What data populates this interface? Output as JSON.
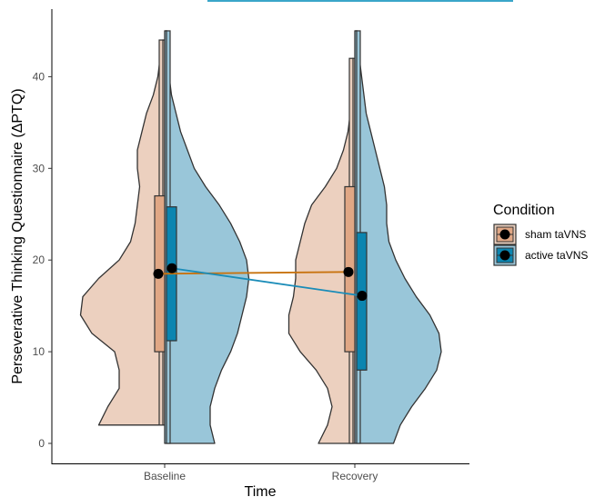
{
  "chart_data": {
    "type": "violin",
    "title": "",
    "xlabel": "Time",
    "ylabel": "Perseverative Thinking Questionnaire (ΔPTQ)",
    "categories": [
      "Baseline",
      "Recovery"
    ],
    "ylim": [
      -2,
      47
    ],
    "yticks": [
      0,
      10,
      20,
      30,
      40
    ],
    "grid": false,
    "legend": {
      "title": "Condition",
      "position": "right",
      "entries": [
        "sham taVNS",
        "active taVNS"
      ]
    },
    "series": [
      {
        "name": "sham taVNS",
        "side": "left",
        "fill": "#e0a785",
        "violin_fill": "#ecd0bf",
        "line_color": "#c8730f",
        "boxes": [
          {
            "category": "Baseline",
            "min": 2,
            "q1": 10,
            "median": 18.5,
            "q3": 27,
            "max": 44,
            "mean": 18.5
          },
          {
            "category": "Recovery",
            "min": 0,
            "q1": 10,
            "median": 18.7,
            "q3": 28,
            "max": 42,
            "mean": 18.7
          }
        ],
        "violins": [
          {
            "category": "Baseline",
            "profile": [
              [
                2,
                0.29
              ],
              [
                4,
                0.25
              ],
              [
                6,
                0.2
              ],
              [
                8,
                0.2
              ],
              [
                10,
                0.22
              ],
              [
                12,
                0.32
              ],
              [
                14,
                0.37
              ],
              [
                16,
                0.36
              ],
              [
                18,
                0.29
              ],
              [
                20,
                0.2
              ],
              [
                22,
                0.15
              ],
              [
                24,
                0.13
              ],
              [
                26,
                0.12
              ],
              [
                28,
                0.11
              ],
              [
                30,
                0.12
              ],
              [
                32,
                0.12
              ],
              [
                34,
                0.1
              ],
              [
                36,
                0.08
              ],
              [
                38,
                0.05
              ],
              [
                40,
                0.03
              ],
              [
                42,
                0.02
              ],
              [
                44,
                0.01
              ]
            ]
          },
          {
            "category": "Recovery",
            "profile": [
              [
                0,
                0.16
              ],
              [
                2,
                0.12
              ],
              [
                4,
                0.1
              ],
              [
                6,
                0.12
              ],
              [
                8,
                0.17
              ],
              [
                10,
                0.24
              ],
              [
                12,
                0.29
              ],
              [
                14,
                0.29
              ],
              [
                16,
                0.27
              ],
              [
                18,
                0.26
              ],
              [
                20,
                0.26
              ],
              [
                22,
                0.24
              ],
              [
                24,
                0.22
              ],
              [
                26,
                0.19
              ],
              [
                28,
                0.13
              ],
              [
                30,
                0.08
              ],
              [
                32,
                0.05
              ],
              [
                34,
                0.03
              ],
              [
                36,
                0.02
              ],
              [
                38,
                0.02
              ],
              [
                40,
                0.02
              ],
              [
                42,
                0.01
              ]
            ]
          }
        ]
      },
      {
        "name": "active taVNS",
        "side": "right",
        "fill": "#0b85b0",
        "violin_fill": "#99c6d9",
        "line_color": "#1a8cb8",
        "boxes": [
          {
            "category": "Baseline",
            "min": 0,
            "q1": 11.2,
            "median": 19,
            "q3": 25.8,
            "max": 45,
            "mean": 19.1
          },
          {
            "category": "Recovery",
            "min": 0,
            "q1": 8,
            "median": 16,
            "q3": 23,
            "max": 45,
            "mean": 16.1
          }
        ],
        "violins": [
          {
            "category": "Baseline",
            "profile": [
              [
                0,
                0.22
              ],
              [
                2,
                0.2
              ],
              [
                4,
                0.2
              ],
              [
                6,
                0.22
              ],
              [
                8,
                0.25
              ],
              [
                10,
                0.29
              ],
              [
                12,
                0.32
              ],
              [
                14,
                0.34
              ],
              [
                16,
                0.36
              ],
              [
                18,
                0.37
              ],
              [
                20,
                0.36
              ],
              [
                22,
                0.33
              ],
              [
                24,
                0.29
              ],
              [
                26,
                0.24
              ],
              [
                28,
                0.18
              ],
              [
                30,
                0.13
              ],
              [
                32,
                0.1
              ],
              [
                34,
                0.07
              ],
              [
                36,
                0.05
              ],
              [
                38,
                0.03
              ],
              [
                40,
                0.02
              ],
              [
                42,
                0.02
              ],
              [
                44,
                0.01
              ],
              [
                45,
                0.01
              ]
            ]
          },
          {
            "category": "Recovery",
            "profile": [
              [
                0,
                0.17
              ],
              [
                2,
                0.2
              ],
              [
                4,
                0.25
              ],
              [
                6,
                0.31
              ],
              [
                8,
                0.36
              ],
              [
                10,
                0.38
              ],
              [
                12,
                0.37
              ],
              [
                14,
                0.33
              ],
              [
                16,
                0.27
              ],
              [
                18,
                0.22
              ],
              [
                20,
                0.18
              ],
              [
                22,
                0.15
              ],
              [
                24,
                0.14
              ],
              [
                26,
                0.14
              ],
              [
                28,
                0.13
              ],
              [
                30,
                0.11
              ],
              [
                32,
                0.09
              ],
              [
                34,
                0.07
              ],
              [
                36,
                0.05
              ],
              [
                38,
                0.04
              ],
              [
                40,
                0.03
              ],
              [
                42,
                0.02
              ],
              [
                44,
                0.01
              ],
              [
                45,
                0.01
              ]
            ]
          }
        ]
      }
    ]
  }
}
